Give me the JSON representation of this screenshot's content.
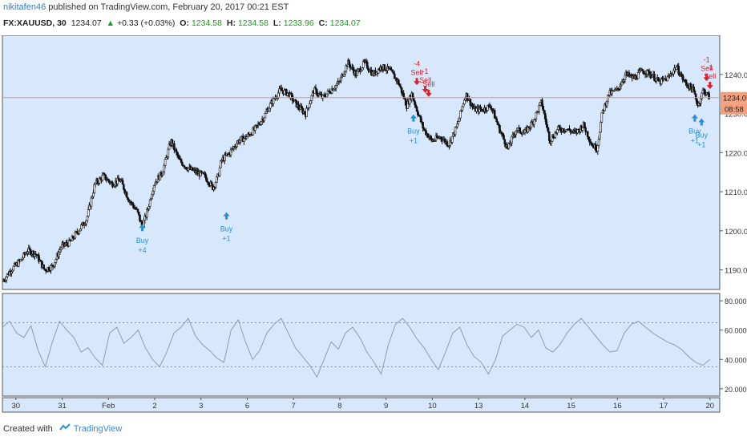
{
  "header": {
    "user": "nikitafen46",
    "published_text": "published on TradingView.com, February 20, 2017 00:21 EST",
    "symbol": "FX:XAUUSD, 30",
    "last": "1234.07",
    "change": "+0.33 (+0.03%)",
    "o_label": "O:",
    "o_value": "1234.58",
    "h_label": "H:",
    "h_value": "1234.58",
    "l_label": "L:",
    "l_value": "1233.96",
    "c_label": "C:",
    "c_value": "1234.07"
  },
  "colors": {
    "price_bg": "#d7e8fc",
    "rsi_bg": "#d7e8fc",
    "up": "#1a9a1a",
    "candle": "#111111",
    "buy": "#2a8fd8",
    "sell": "#e0202a",
    "price_line": "#e8907a",
    "price_tag": "#f2a07d",
    "rsi_line": "#8f9bb3"
  },
  "footer": {
    "created_with": "Created with",
    "brand": "TradingView"
  },
  "chart_data": [
    {
      "type": "candlestick",
      "symbol": "FX:XAUUSD",
      "interval": "30",
      "y_ticks": [
        "1190.00",
        "1200.00",
        "1210.00",
        "1220.00",
        "1230.00",
        "1240.00"
      ],
      "ylim": [
        1185,
        1250
      ],
      "price_tag": "1234.07",
      "countdown_tag": "08:58",
      "x_ticks": [
        "30",
        "31",
        "Feb",
        "2",
        "3",
        "6",
        "7",
        "8",
        "9",
        "10",
        "13",
        "14",
        "15",
        "16",
        "17",
        "20"
      ],
      "close_path": [
        [
          0,
          1187
        ],
        [
          0.5,
          1190
        ],
        [
          1,
          1192
        ],
        [
          1.5,
          1195
        ],
        [
          2,
          1194
        ],
        [
          2.5,
          1190
        ],
        [
          3,
          1191
        ],
        [
          3.5,
          1196
        ],
        [
          4,
          1197
        ],
        [
          4.5,
          1200
        ],
        [
          5,
          1203
        ],
        [
          5.5,
          1212
        ],
        [
          6,
          1214
        ],
        [
          6.5,
          1212
        ],
        [
          7,
          1213
        ],
        [
          7.5,
          1208
        ],
        [
          8,
          1205
        ],
        [
          8.3,
          1201
        ],
        [
          8.6,
          1205
        ],
        [
          9,
          1212
        ],
        [
          9.5,
          1215
        ],
        [
          10,
          1223
        ],
        [
          10.5,
          1218
        ],
        [
          11,
          1216
        ],
        [
          11.5,
          1215
        ],
        [
          12,
          1214
        ],
        [
          12.5,
          1211
        ],
        [
          12.8,
          1214
        ],
        [
          13,
          1218
        ],
        [
          13.5,
          1220
        ],
        [
          14,
          1223
        ],
        [
          14.5,
          1224
        ],
        [
          15,
          1226
        ],
        [
          15.5,
          1229
        ],
        [
          16,
          1233
        ],
        [
          16.5,
          1236
        ],
        [
          17,
          1235
        ],
        [
          17.5,
          1232
        ],
        [
          18,
          1230
        ],
        [
          18.5,
          1236
        ],
        [
          19,
          1234
        ],
        [
          19.5,
          1236
        ],
        [
          20,
          1238
        ],
        [
          20.5,
          1243
        ],
        [
          21,
          1240
        ],
        [
          21.5,
          1243
        ],
        [
          22,
          1240
        ],
        [
          22.5,
          1242
        ],
        [
          23,
          1241
        ],
        [
          23.5,
          1238
        ],
        [
          24,
          1232
        ],
        [
          24.3,
          1235
        ],
        [
          24.6,
          1231
        ],
        [
          25,
          1226
        ],
        [
          25.5,
          1223
        ],
        [
          26,
          1224
        ],
        [
          26.5,
          1222
        ],
        [
          27,
          1227
        ],
        [
          27.5,
          1235
        ],
        [
          28,
          1231
        ],
        [
          28.5,
          1231
        ],
        [
          29,
          1232
        ],
        [
          29.5,
          1226
        ],
        [
          30,
          1221
        ],
        [
          30.5,
          1226
        ],
        [
          31,
          1225
        ],
        [
          31.5,
          1228
        ],
        [
          32,
          1233
        ],
        [
          32.5,
          1223
        ],
        [
          33,
          1226
        ],
        [
          33.5,
          1226
        ],
        [
          34,
          1225
        ],
        [
          34.5,
          1227
        ],
        [
          35,
          1222
        ],
        [
          35.3,
          1221
        ],
        [
          35.6,
          1230
        ],
        [
          36,
          1235
        ],
        [
          36.5,
          1236
        ],
        [
          37,
          1240
        ],
        [
          37.5,
          1239
        ],
        [
          38,
          1241
        ],
        [
          38.5,
          1240
        ],
        [
          39,
          1238
        ],
        [
          39.5,
          1239
        ],
        [
          40,
          1242
        ],
        [
          40.5,
          1238
        ],
        [
          41,
          1236
        ],
        [
          41.3,
          1232
        ],
        [
          41.6,
          1236
        ],
        [
          42,
          1234
        ]
      ],
      "signals": [
        {
          "type": "Buy",
          "label": "Buy",
          "qty": "+4",
          "x": 8.3,
          "y": 1203
        },
        {
          "type": "Buy",
          "label": "Buy",
          "qty": "+1",
          "x": 13.3,
          "y": 1206
        },
        {
          "type": "Buy",
          "label": "Buy",
          "qty": "+1",
          "x": 24.4,
          "y": 1231
        },
        {
          "type": "Sell",
          "label": "Sell",
          "qty": "-4",
          "x": 24.6,
          "y": 1236
        },
        {
          "type": "Sell",
          "label": "Sell",
          "qty": "-1",
          "x": 25.1,
          "y": 1234
        },
        {
          "type": "Sell",
          "label": "Sell",
          "qty": "",
          "x": 25.3,
          "y": 1233
        },
        {
          "type": "Buy",
          "label": "Buy",
          "qty": "+1",
          "x": 41.1,
          "y": 1231
        },
        {
          "type": "Buy",
          "label": "Buy",
          "qty": "+1",
          "x": 41.5,
          "y": 1230
        },
        {
          "type": "Sell",
          "label": "Sell",
          "qty": "-1",
          "x": 41.8,
          "y": 1237
        },
        {
          "type": "Sell",
          "label": "Sell",
          "qty": "-1",
          "x": 42.0,
          "y": 1235
        }
      ]
    },
    {
      "type": "line",
      "name": "RSI",
      "y_ticks": [
        "20.0000",
        "40.0000",
        "60.0000",
        "80.0000"
      ],
      "ylim": [
        15,
        85
      ],
      "upper_band": 65,
      "lower_band": 35,
      "values": [
        62,
        66,
        58,
        55,
        63,
        46,
        35,
        52,
        66,
        60,
        55,
        45,
        48,
        41,
        36,
        58,
        62,
        51,
        55,
        60,
        48,
        40,
        35,
        45,
        58,
        62,
        68,
        56,
        50,
        46,
        41,
        38,
        60,
        67,
        52,
        40,
        46,
        58,
        64,
        68,
        58,
        48,
        42,
        36,
        28,
        40,
        52,
        47,
        58,
        62,
        55,
        45,
        38,
        30,
        50,
        64,
        68,
        62,
        54,
        48,
        40,
        33,
        45,
        58,
        62,
        50,
        42,
        38,
        30,
        40,
        56,
        60,
        64,
        62,
        55,
        60,
        48,
        45,
        50,
        58,
        64,
        68,
        62,
        56,
        50,
        45,
        46,
        58,
        64,
        66,
        62,
        58,
        55,
        52,
        50,
        47,
        42,
        38,
        36,
        40
      ]
    }
  ]
}
